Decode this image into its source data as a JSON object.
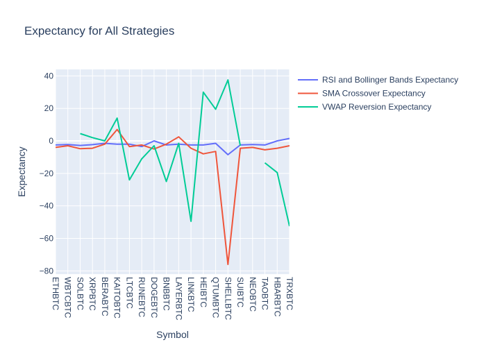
{
  "chart_data": {
    "type": "line",
    "title": "Expectancy for All Strategies",
    "xlabel": "Symbol",
    "ylabel": "Expectancy",
    "categories": [
      "ETHBTC",
      "WBTCBTC",
      "SOLBTC",
      "XRPBTC",
      "BERABTC",
      "KAITOBTC",
      "LTCBTC",
      "RUNEBTC",
      "DOGEBTC",
      "BNBBTC",
      "LAYERBTC",
      "LINKBTC",
      "HEIBTC",
      "QTUMBTC",
      "SHELLBTC",
      "SUIBTC",
      "NEOBTC",
      "TAOBTC",
      "HBARBTC",
      "TRXBTC"
    ],
    "ylim": [
      -82,
      44
    ],
    "yticks": [
      -80,
      -60,
      -40,
      -20,
      0,
      20,
      40
    ],
    "grid": true,
    "legend_position": "top-right",
    "series": [
      {
        "name": "RSI and Bollinger Bands Expectancy",
        "color": "#636efa",
        "values": [
          -2.5,
          -2.2,
          -2.8,
          -2.3,
          -1.5,
          -2.0,
          -2.0,
          -3.5,
          0.0,
          -2.5,
          -2.0,
          -2.5,
          -2.5,
          -1.5,
          -8.5,
          -2.5,
          -2.2,
          -2.5,
          0.0,
          1.5
        ]
      },
      {
        "name": "SMA Crossover Expectancy",
        "color": "#ef553b",
        "values": [
          -4.0,
          -3.0,
          -4.8,
          -4.5,
          -2.0,
          7.0,
          -3.5,
          -2.5,
          -5.0,
          -2.0,
          2.5,
          -4.5,
          -8.0,
          -6.5,
          -76.0,
          -4.5,
          -4.0,
          -5.5,
          -4.5,
          -3.0
        ]
      },
      {
        "name": "VWAP Reversion Expectancy",
        "color": "#00cc96",
        "values": [
          null,
          null,
          4.5,
          2.0,
          0.0,
          14.0,
          -24.0,
          -11.0,
          -3.0,
          -25.0,
          -1.5,
          -49.5,
          30.0,
          19.5,
          37.5,
          -3.0,
          null,
          -13.5,
          -19.5,
          -52.5
        ]
      }
    ]
  }
}
